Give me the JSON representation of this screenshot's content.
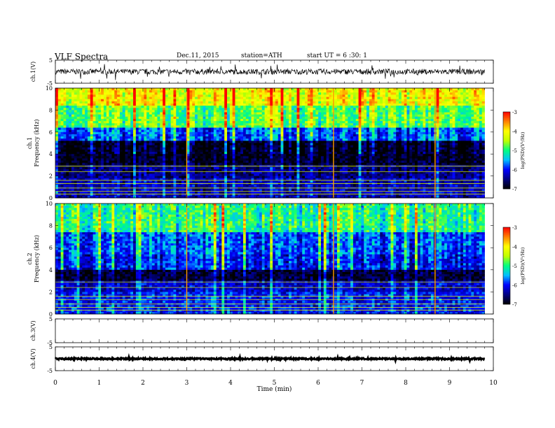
{
  "header": {
    "title": "VLF  Spectra",
    "date": "Dec.11, 2015",
    "station": "station=ATH",
    "start": "start  UT =   6 :30: 1"
  },
  "chart_data": [
    {
      "type": "line",
      "panel": "ch1-waveform",
      "ylabel": "ch.1(V)",
      "ylim": [
        -5,
        5
      ],
      "yticks": [
        "5",
        "-5"
      ],
      "x_range_min": [
        0,
        9.8
      ],
      "description_values": {
        "baseline": 0,
        "noise_amplitude": 1.2
      }
    },
    {
      "type": "heatmap",
      "panel": "ch1-spectrogram",
      "ylabel": "ch.1\nFrequency  (kHz)",
      "ylim": [
        0,
        10
      ],
      "yticks": [
        "0",
        "2",
        "4",
        "6",
        "8",
        "10"
      ],
      "x_range_min": [
        0,
        9.8
      ],
      "colorbar": {
        "label": "log(PSD)(V²/Hz)",
        "range": [
          -7,
          -3
        ],
        "ticks": [
          "-3",
          "-4",
          "-5",
          "-6",
          "-7"
        ]
      },
      "bands_khz": [
        {
          "from": 0,
          "to": 1.8,
          "logpsd": -6.3
        },
        {
          "from": 1.8,
          "to": 3.0,
          "logpsd": -6.5
        },
        {
          "from": 3.0,
          "to": 5.2,
          "logpsd": -6.9
        },
        {
          "from": 5.2,
          "to": 6.5,
          "logpsd": -5.8
        },
        {
          "from": 6.5,
          "to": 8.5,
          "logpsd": -4.8
        },
        {
          "from": 8.5,
          "to": 10,
          "logpsd": -4.1
        }
      ],
      "events_min": [
        3.0,
        6.35,
        8.67
      ]
    },
    {
      "type": "heatmap",
      "panel": "ch2-spectrogram",
      "ylabel": "ch.2\nFrequency  (kHz)",
      "ylim": [
        0,
        10
      ],
      "yticks": [
        "0",
        "2",
        "4",
        "6",
        "8",
        "10"
      ],
      "x_range_min": [
        0,
        9.8
      ],
      "colorbar": {
        "label": "log(PSD)(V²/Hz)",
        "range": [
          -7,
          -3
        ],
        "ticks": [
          "-3",
          "-4",
          "-5",
          "-6",
          "-7"
        ]
      },
      "bands_khz": [
        {
          "from": 0,
          "to": 2.0,
          "logpsd": -6.0
        },
        {
          "from": 2.0,
          "to": 3.0,
          "logpsd": -6.2
        },
        {
          "from": 3.0,
          "to": 4.0,
          "logpsd": -6.8
        },
        {
          "from": 4.0,
          "to": 5.5,
          "logpsd": -6.0
        },
        {
          "from": 5.5,
          "to": 7.5,
          "logpsd": -5.8
        },
        {
          "from": 7.5,
          "to": 10,
          "logpsd": -5.0
        }
      ],
      "events_min": [
        3.0,
        6.35,
        8.67
      ]
    },
    {
      "type": "line",
      "panel": "ch3-waveform",
      "ylabel": "ch.3(V)",
      "ylim": [
        -5,
        5
      ],
      "yticks": [
        "5",
        "-5"
      ],
      "values": []
    },
    {
      "type": "line",
      "panel": "ch4-waveform",
      "ylabel": "ch.4(V)",
      "ylim": [
        -5,
        5
      ],
      "yticks": [
        "5",
        "-5"
      ],
      "x_range_min": [
        0,
        9.8
      ],
      "description_values": {
        "baseline": 0,
        "noise_amplitude": 0.3
      }
    }
  ],
  "xaxis": {
    "label": "Time  (min)",
    "ticks": [
      "0",
      "1",
      "2",
      "3",
      "4",
      "5",
      "6",
      "7",
      "8",
      "9",
      "10"
    ],
    "range": [
      0,
      10
    ]
  },
  "colors": {
    "colormap": [
      "#000000",
      "#000080",
      "#0000ff",
      "#00c0ff",
      "#00ff80",
      "#c0ff00",
      "#ffff00",
      "#ff8000",
      "#ff0000",
      "#ffffff"
    ]
  }
}
